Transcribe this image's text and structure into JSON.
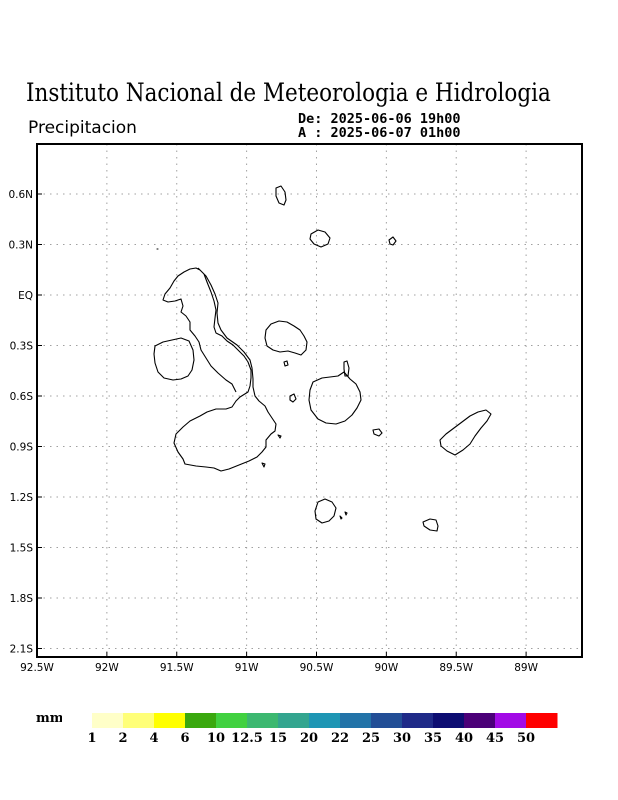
{
  "header": {
    "title": "Instituto Nacional de Meteorologia e Hidrologia",
    "subtitle": "Precipitacion",
    "period_from": "De: 2025-06-06 19h00",
    "period_to": "A : 2025-06-07 01h00"
  },
  "map": {
    "region": "Galapagos",
    "lon_range": [
      -92.5,
      -88.6
    ],
    "lat_range": [
      -2.15,
      0.85
    ],
    "lon_ticks": [
      {
        "value": -92.5,
        "label": "92.5W"
      },
      {
        "value": -92.0,
        "label": "92W"
      },
      {
        "value": -91.5,
        "label": "91.5W"
      },
      {
        "value": -91.0,
        "label": "91W"
      },
      {
        "value": -90.5,
        "label": "90.5W"
      },
      {
        "value": -90.0,
        "label": "90W"
      },
      {
        "value": -89.5,
        "label": "89.5W"
      },
      {
        "value": -89.0,
        "label": "89W"
      }
    ],
    "lat_ticks": [
      {
        "value": 0.6,
        "label": "0.6N"
      },
      {
        "value": 0.3,
        "label": "0.3N"
      },
      {
        "value": 0.0,
        "label": "EQ"
      },
      {
        "value": -0.3,
        "label": "0.3S"
      },
      {
        "value": -0.6,
        "label": "0.6S"
      },
      {
        "value": -0.9,
        "label": "0.9S"
      },
      {
        "value": -1.2,
        "label": "1.2S"
      },
      {
        "value": -1.5,
        "label": "1.5S"
      },
      {
        "value": -1.8,
        "label": "1.8S"
      },
      {
        "value": -2.1,
        "label": "2.1S"
      }
    ],
    "grid": true,
    "gridline_color": "#a0a0a0",
    "coastline_color": "#000000",
    "precipitation_field": "none visible"
  },
  "legend": {
    "units": "mm",
    "colors": [
      "#ffffc8",
      "#ffff78",
      "#ffff00",
      "#3aa80e",
      "#41d140",
      "#3cb870",
      "#33a58f",
      "#1e96b4",
      "#2273a8",
      "#224e96",
      "#1f2a88",
      "#0d0d72",
      "#4b0078",
      "#a20ae6",
      "#ff0000"
    ],
    "labels": [
      "1",
      "2",
      "4",
      "6",
      "10",
      "12.5",
      "15",
      "20",
      "22",
      "25",
      "30",
      "35",
      "40",
      "45",
      "50"
    ]
  }
}
